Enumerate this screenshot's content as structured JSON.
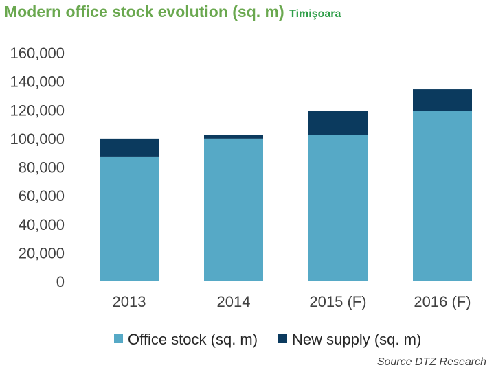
{
  "chart_data": {
    "type": "bar",
    "stacked": true,
    "title": "Modern office stock evolution (sq. m)",
    "subtitle": "Timişoara",
    "categories": [
      "2013",
      "2014",
      "2015 (F)",
      "2016 (F)"
    ],
    "series": [
      {
        "name": "Office stock (sq. m)",
        "color": "#56a9c6",
        "values": [
          87000,
          100000,
          102500,
          119500
        ]
      },
      {
        "name": "New supply (sq. m)",
        "color": "#0b3a5e",
        "values": [
          13000,
          2500,
          17000,
          15000
        ]
      }
    ],
    "ylim": [
      0,
      160000
    ],
    "yticks": [
      0,
      20000,
      40000,
      60000,
      80000,
      100000,
      120000,
      140000,
      160000
    ],
    "ytick_labels": [
      "0",
      "20,000",
      "40,000",
      "60,000",
      "80,000",
      "100,000",
      "120,000",
      "140,000",
      "160,000"
    ],
    "grid": false,
    "legend_position": "bottom",
    "source": "Source DTZ Research"
  }
}
